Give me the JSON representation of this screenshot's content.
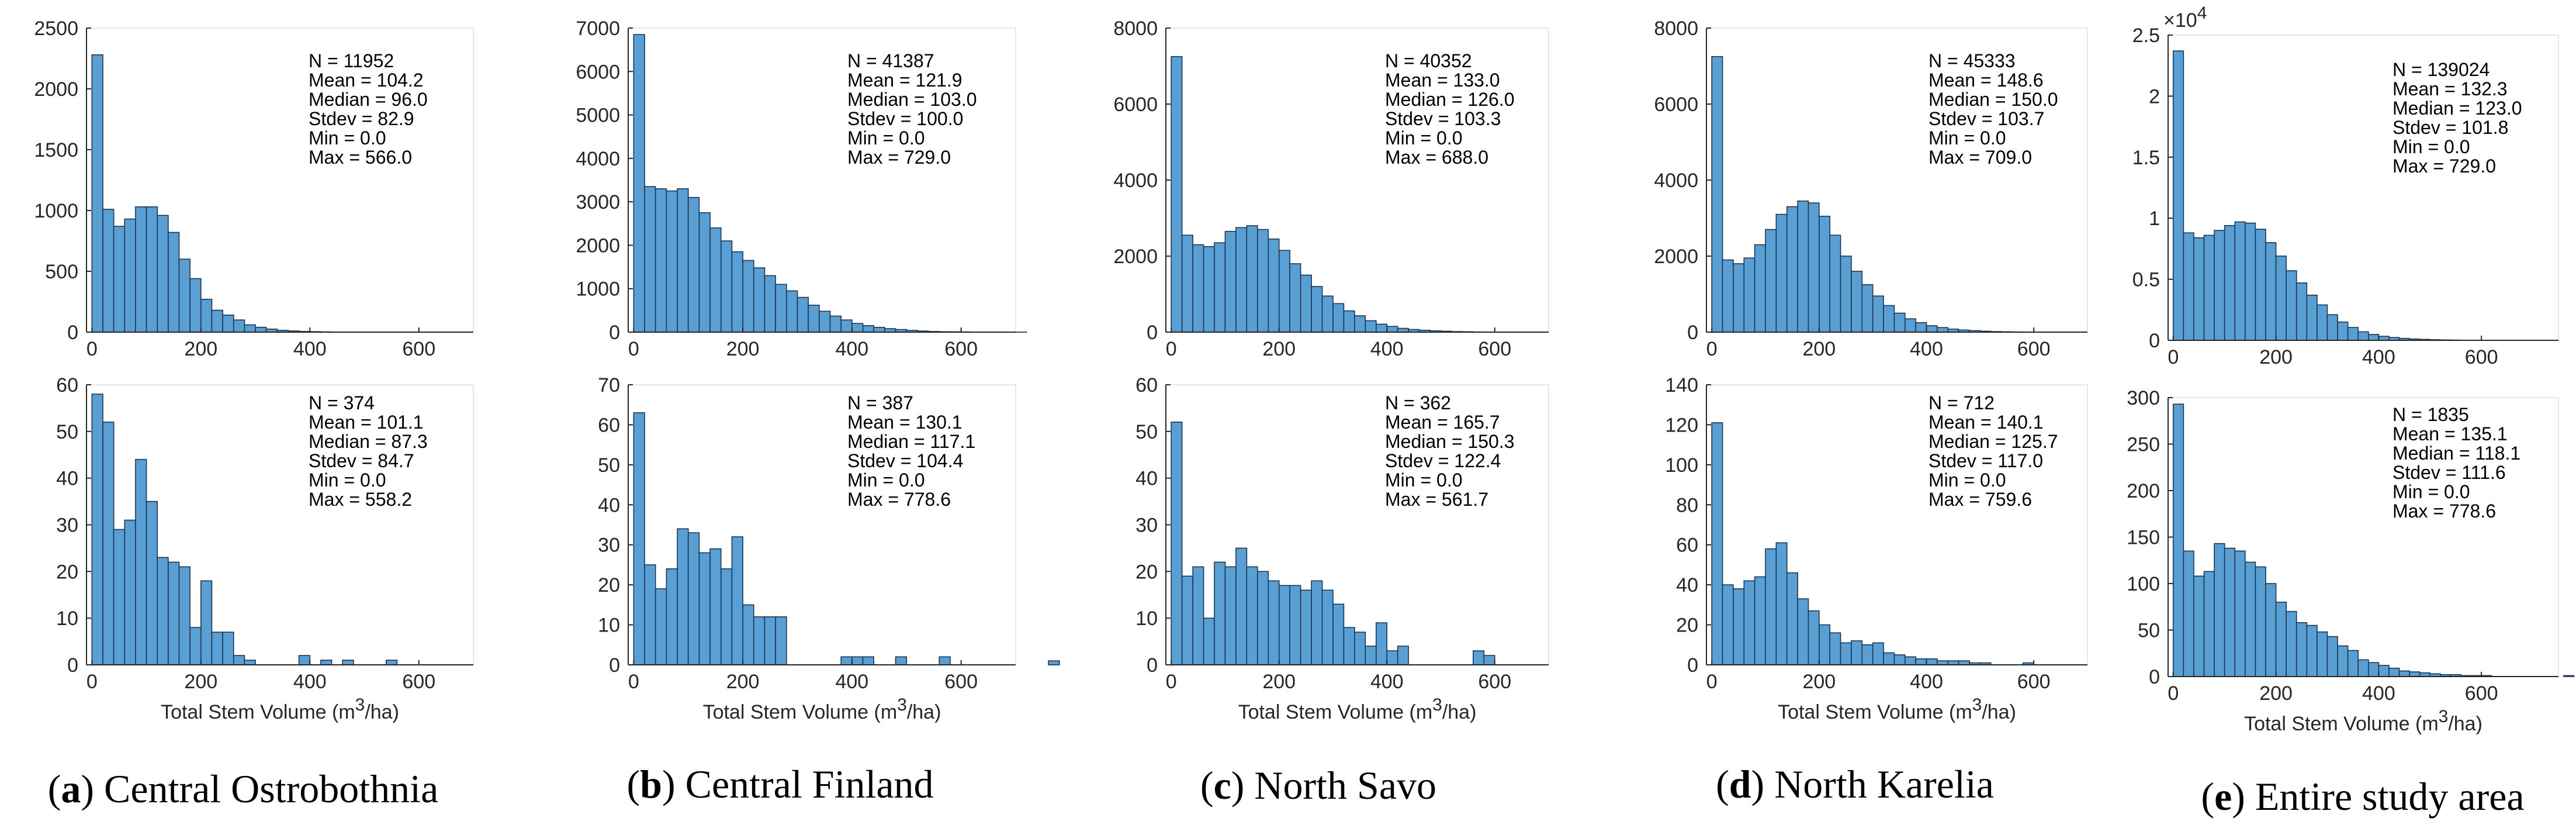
{
  "figure": {
    "bar_color": "#5a9fd4",
    "bar_edge": "#1b3552",
    "axis_color": "#262626",
    "captions": [
      {
        "letter": "a",
        "text": "Central Ostrobothnia"
      },
      {
        "letter": "b",
        "text": "Central Finland"
      },
      {
        "letter": "c",
        "text": "North Savo"
      },
      {
        "letter": "d",
        "text": "North Karelia"
      },
      {
        "letter": "e",
        "text": "Entire study area"
      }
    ]
  },
  "chart_data": [
    {
      "type": "bar",
      "panel": "a-top",
      "bin_width": 20,
      "xlim": [
        -10,
        700
      ],
      "xticks": [
        0,
        200,
        400,
        600
      ],
      "ylim": [
        0,
        2500
      ],
      "yticks": [
        0,
        500,
        1000,
        1500,
        2000,
        2500
      ],
      "ytick_labels": [
        "0",
        "500",
        "1000",
        "1500",
        "2000",
        "2500"
      ],
      "xlabel": "",
      "values": [
        2280,
        1010,
        870,
        930,
        1030,
        1030,
        960,
        820,
        600,
        440,
        270,
        180,
        140,
        100,
        60,
        40,
        25,
        15,
        10,
        6,
        4,
        2,
        1,
        1,
        1,
        0,
        0,
        0,
        0
      ],
      "stats": [
        "N = 11952",
        "Mean = 104.2",
        "Median = 96.0",
        "Stdev = 82.9",
        "Min = 0.0",
        "Max = 566.0"
      ]
    },
    {
      "type": "bar",
      "panel": "b-top",
      "bin_width": 20,
      "xlim": [
        -10,
        700
      ],
      "xticks": [
        0,
        200,
        400,
        600
      ],
      "ylim": [
        0,
        7000
      ],
      "yticks": [
        0,
        1000,
        2000,
        3000,
        4000,
        5000,
        6000,
        7000
      ],
      "ytick_labels": [
        "0",
        "1000",
        "2000",
        "3000",
        "4000",
        "5000",
        "6000",
        "7000"
      ],
      "xlabel": "",
      "values": [
        6850,
        3350,
        3300,
        3250,
        3300,
        3100,
        2750,
        2400,
        2100,
        1850,
        1650,
        1480,
        1300,
        1100,
        950,
        800,
        620,
        480,
        370,
        280,
        200,
        150,
        110,
        80,
        60,
        40,
        25,
        15,
        10,
        8,
        5,
        3,
        2,
        1,
        1,
        1,
        0
      ],
      "stats": [
        "N = 41387",
        "Mean = 121.9",
        "Median = 103.0",
        "Stdev = 100.0",
        "Min = 0.0",
        "Max = 729.0"
      ]
    },
    {
      "type": "bar",
      "panel": "c-top",
      "bin_width": 20,
      "xlim": [
        -10,
        700
      ],
      "xticks": [
        0,
        200,
        400,
        600
      ],
      "ylim": [
        0,
        8000
      ],
      "yticks": [
        0,
        2000,
        4000,
        6000,
        8000
      ],
      "ytick_labels": [
        "0",
        "2000",
        "4000",
        "6000",
        "8000"
      ],
      "xlabel": "",
      "values": [
        7250,
        2550,
        2300,
        2250,
        2350,
        2650,
        2750,
        2800,
        2700,
        2450,
        2150,
        1800,
        1500,
        1200,
        950,
        750,
        560,
        430,
        300,
        210,
        150,
        100,
        70,
        50,
        35,
        25,
        15,
        10,
        5,
        3,
        2,
        1,
        1,
        1,
        0
      ],
      "stats": [
        "N = 40352",
        "Mean = 133.0",
        "Median = 126.0",
        "Stdev = 103.3",
        "Min = 0.0",
        "Max = 688.0"
      ]
    },
    {
      "type": "bar",
      "panel": "d-top",
      "bin_width": 20,
      "xlim": [
        -10,
        700
      ],
      "xticks": [
        0,
        200,
        400,
        600
      ],
      "ylim": [
        0,
        8000
      ],
      "yticks": [
        0,
        2000,
        4000,
        6000,
        8000
      ],
      "ytick_labels": [
        "0",
        "2000",
        "4000",
        "6000",
        "8000"
      ],
      "xlabel": "",
      "values": [
        7250,
        1900,
        1800,
        1950,
        2300,
        2700,
        3100,
        3300,
        3450,
        3400,
        3050,
        2550,
        2000,
        1600,
        1250,
        950,
        700,
        500,
        350,
        250,
        170,
        120,
        80,
        55,
        40,
        25,
        15,
        10,
        5,
        3,
        2,
        1,
        1,
        1,
        0
      ],
      "stats": [
        "N = 45333",
        "Mean = 148.6",
        "Median = 150.0",
        "Stdev = 103.7",
        "Min = 0.0",
        "Max = 709.0"
      ]
    },
    {
      "type": "bar",
      "panel": "e-top",
      "bin_width": 20,
      "xlim": [
        -10,
        750
      ],
      "xticks": [
        0,
        200,
        400,
        600
      ],
      "ylim": [
        0,
        25000
      ],
      "yticks": [
        0,
        5000,
        10000,
        15000,
        20000,
        25000
      ],
      "ytick_labels": [
        "0",
        "0.5",
        "1",
        "1.5",
        "2",
        "2.5"
      ],
      "exponent_base": "×10",
      "exponent_power": "4",
      "xlabel": "",
      "values": [
        23700,
        8800,
        8400,
        8600,
        9000,
        9400,
        9700,
        9600,
        9100,
        8000,
        6900,
        5700,
        4700,
        3700,
        2900,
        2100,
        1500,
        1050,
        700,
        480,
        330,
        230,
        160,
        110,
        75,
        50,
        30,
        20,
        12,
        8,
        5,
        3,
        2,
        1,
        1,
        1,
        0
      ],
      "stats": [
        "N = 139024",
        "Mean = 132.3",
        "Median = 123.0",
        "Stdev = 101.8",
        "Min = 0.0",
        "Max = 729.0"
      ]
    },
    {
      "type": "bar",
      "panel": "a-bottom",
      "bin_width": 20,
      "xlim": [
        -10,
        700
      ],
      "xticks": [
        0,
        200,
        400,
        600
      ],
      "ylim": [
        0,
        60
      ],
      "yticks": [
        0,
        10,
        20,
        30,
        40,
        50,
        60
      ],
      "ytick_labels": [
        "0",
        "10",
        "20",
        "30",
        "40",
        "50",
        "60"
      ],
      "xlabel": "Total Stem Volume (m³/ha)",
      "values": [
        58,
        52,
        29,
        31,
        44,
        35,
        23,
        22,
        21,
        8,
        18,
        7,
        7,
        2,
        1,
        0,
        0,
        0,
        0,
        2,
        0,
        1,
        0,
        1,
        0,
        0,
        0,
        1,
        0,
        0
      ],
      "stats": [
        "N = 374",
        "Mean = 101.1",
        "Median = 87.3",
        "Stdev = 84.7",
        "Min = 0.0",
        "Max = 558.2"
      ]
    },
    {
      "type": "bar",
      "panel": "b-bottom",
      "bin_width": 20,
      "xlim": [
        -10,
        700
      ],
      "xticks": [
        0,
        200,
        400,
        600
      ],
      "ylim": [
        0,
        70
      ],
      "yticks": [
        0,
        10,
        20,
        30,
        40,
        50,
        60,
        70
      ],
      "ytick_labels": [
        "0",
        "10",
        "20",
        "30",
        "40",
        "50",
        "60",
        "70"
      ],
      "xlabel": "Total Stem Volume (m³/ha)",
      "values": [
        63,
        25,
        19,
        24,
        34,
        33,
        28,
        29,
        24,
        32,
        15,
        12,
        12,
        12,
        0,
        0,
        0,
        0,
        0,
        2,
        2,
        2,
        0,
        0,
        2,
        0,
        0,
        0,
        2,
        0,
        0,
        0,
        0,
        0,
        0,
        0,
        0,
        0,
        1
      ],
      "stats": [
        "N = 387",
        "Mean = 130.1",
        "Median = 117.1",
        "Stdev = 104.4",
        "Min = 0.0",
        "Max = 778.6"
      ]
    },
    {
      "type": "bar",
      "panel": "c-bottom",
      "bin_width": 20,
      "xlim": [
        -10,
        700
      ],
      "xticks": [
        0,
        200,
        400,
        600
      ],
      "ylim": [
        0,
        60
      ],
      "yticks": [
        0,
        10,
        20,
        30,
        40,
        50,
        60
      ],
      "ytick_labels": [
        "0",
        "10",
        "20",
        "30",
        "40",
        "50",
        "60"
      ],
      "xlabel": "Total Stem Volume (m³/ha)",
      "values": [
        52,
        19,
        21,
        10,
        22,
        21,
        25,
        21,
        20,
        18,
        17,
        17,
        16,
        18,
        16,
        13,
        8,
        7,
        4,
        9,
        3,
        4,
        0,
        0,
        0,
        0,
        0,
        0,
        3,
        2,
        0
      ],
      "stats": [
        "N = 362",
        "Mean = 165.7",
        "Median = 150.3",
        "Stdev = 122.4",
        "Min = 0.0",
        "Max = 561.7"
      ]
    },
    {
      "type": "bar",
      "panel": "d-bottom",
      "bin_width": 20,
      "xlim": [
        -10,
        700
      ],
      "xticks": [
        0,
        200,
        400,
        600
      ],
      "ylim": [
        0,
        140
      ],
      "yticks": [
        0,
        20,
        40,
        60,
        80,
        100,
        120,
        140
      ],
      "ytick_labels": [
        "0",
        "20",
        "40",
        "60",
        "80",
        "100",
        "120",
        "140"
      ],
      "xlabel": "Total Stem Volume (m³/ha)",
      "values": [
        121,
        40,
        38,
        42,
        44,
        58,
        61,
        46,
        33,
        27,
        20,
        16,
        11,
        12,
        10,
        11,
        6,
        5,
        4,
        3,
        3,
        2,
        2,
        2,
        1,
        1,
        0,
        0,
        0,
        1,
        0,
        0
      ],
      "stats": [
        "N = 712",
        "Mean = 140.1",
        "Median = 125.7",
        "Stdev = 117.0",
        "Min = 0.0",
        "Max = 759.6"
      ]
    },
    {
      "type": "bar",
      "panel": "e-bottom",
      "bin_width": 20,
      "xlim": [
        -10,
        750
      ],
      "xticks": [
        0,
        200,
        400,
        600
      ],
      "ylim": [
        0,
        300
      ],
      "yticks": [
        0,
        50,
        100,
        150,
        200,
        250,
        300
      ],
      "ytick_labels": [
        "0",
        "50",
        "100",
        "150",
        "200",
        "250",
        "300"
      ],
      "xlabel": "Total Stem Volume (m³/ha)",
      "values": [
        293,
        135,
        108,
        113,
        143,
        138,
        135,
        123,
        118,
        100,
        80,
        70,
        58,
        55,
        48,
        43,
        33,
        28,
        18,
        15,
        12,
        9,
        6,
        5,
        4,
        3,
        2,
        2,
        1,
        1,
        1,
        0,
        0,
        0,
        0,
        0,
        0,
        0,
        1
      ],
      "stats": [
        "N = 1835",
        "Mean = 135.1",
        "Median = 118.1",
        "Stdev = 111.6",
        "Min = 0.0",
        "Max = 778.6"
      ]
    }
  ]
}
